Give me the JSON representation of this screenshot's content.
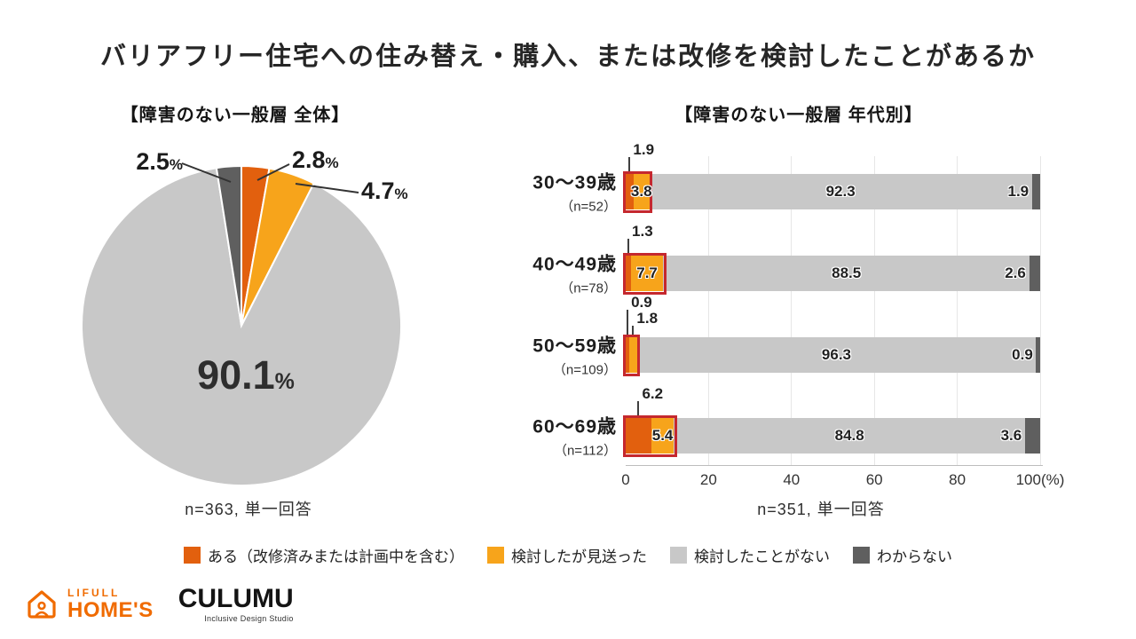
{
  "title": "バリアフリー住宅への住み替え・購入、または改修を検討したことがあるか",
  "unit_percent": "%",
  "highlight_color": "#c5282e",
  "legend": [
    {
      "label": "ある（改修済みまたは計画中を含む）",
      "color": "#e2600e"
    },
    {
      "label": "検討したが見送った",
      "color": "#f7a41b"
    },
    {
      "label": "検討したことがない",
      "color": "#c8c8c8"
    },
    {
      "label": "わからない",
      "color": "#5f5f5f"
    }
  ],
  "chart_data": [
    {
      "type": "pie",
      "title": "【障害のない一般層 全体】",
      "labels": [
        "ある（改修済みまたは計画中を含む）",
        "検討したが見送った",
        "検討したことがない",
        "わからない"
      ],
      "values": [
        2.8,
        4.7,
        90.1,
        2.5
      ],
      "start_angle_deg": -90,
      "direction": "clockwise",
      "note": "n=363, 単一回答"
    },
    {
      "type": "bar",
      "orientation": "horizontal",
      "stacked": true,
      "title": "【障害のない一般層 年代別】",
      "categories": [
        "30〜39歳",
        "40〜49歳",
        "50〜59歳",
        "60〜69歳"
      ],
      "category_notes": [
        "（n=52）",
        "（n=78）",
        "（n=109）",
        "（n=112）"
      ],
      "series": [
        {
          "name": "ある（改修済みまたは計画中を含む）",
          "values": [
            1.9,
            1.3,
            0.9,
            6.2
          ]
        },
        {
          "name": "検討したが見送った",
          "values": [
            3.8,
            7.7,
            1.8,
            5.4
          ]
        },
        {
          "name": "検討したことがない",
          "values": [
            92.3,
            88.5,
            96.3,
            84.8
          ]
        },
        {
          "name": "わからない",
          "values": [
            1.9,
            2.6,
            0.9,
            3.6
          ]
        }
      ],
      "xlim": [
        0,
        100
      ],
      "ticks": [
        0,
        20,
        40,
        60,
        80,
        100
      ],
      "tick_labels": [
        "0",
        "20",
        "40",
        "60",
        "80",
        "100(%)"
      ],
      "note": "n=351, 単一回答"
    }
  ],
  "footer": {
    "lifull_top": "LIFULL",
    "lifull_bottom": "HOME'S",
    "culumu": "CULUMU",
    "culumu_sub": "Inclusive Design Studio"
  }
}
